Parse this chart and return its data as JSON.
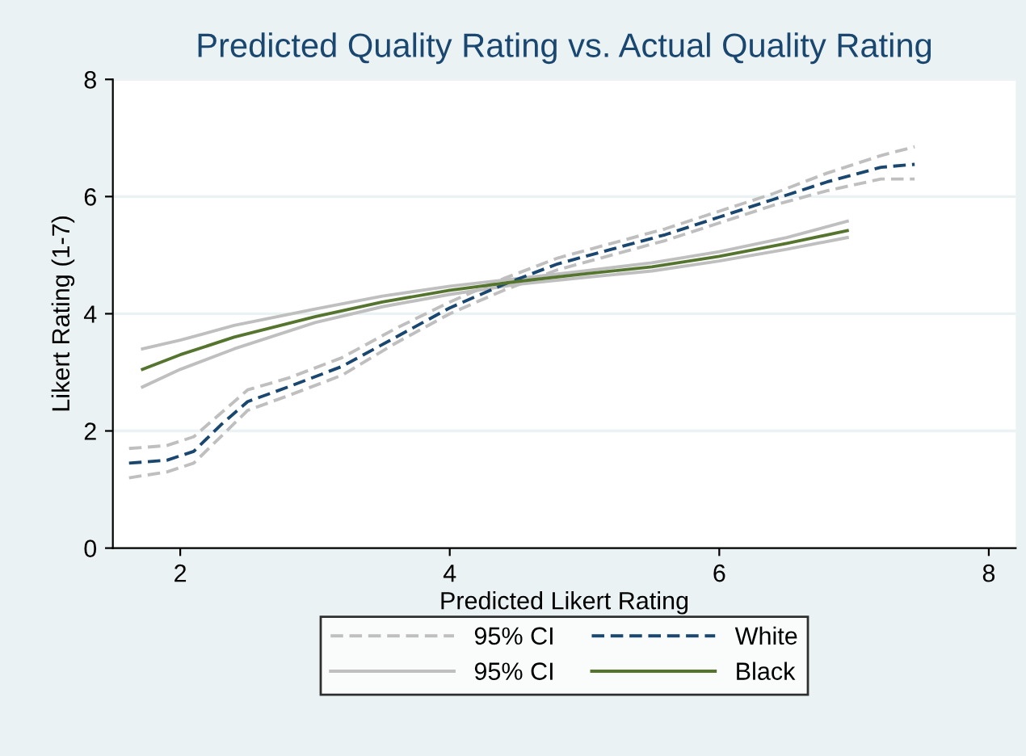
{
  "chart_data": {
    "type": "line",
    "title": "Predicted Quality Rating vs. Actual Quality Rating",
    "xlabel": "Predicted Likert Rating",
    "ylabel": "Likert Rating (1-7)",
    "xlim": [
      1.5,
      8.2
    ],
    "xticks": [
      2,
      4,
      6,
      8
    ],
    "ylim": [
      0,
      8
    ],
    "yticks": [
      0,
      2,
      4,
      6,
      8
    ],
    "grid": "y",
    "legend": "bottom",
    "marker": "none",
    "series": [
      {
        "name": "95% CI",
        "color": "#bfbfbf",
        "line_style": "dashed",
        "x": [
          1.62,
          1.9,
          2.1,
          2.3,
          2.5,
          2.8,
          3.2,
          3.6,
          4.0,
          4.4,
          4.8,
          5.2,
          5.6,
          6.0,
          6.4,
          6.8,
          7.2,
          7.45
        ],
        "values": [
          1.7,
          1.75,
          1.9,
          2.3,
          2.7,
          2.9,
          3.25,
          3.75,
          4.2,
          4.6,
          4.95,
          5.2,
          5.45,
          5.75,
          6.05,
          6.4,
          6.7,
          6.85
        ]
      },
      {
        "color": "#bfbfbf",
        "line_style": "dashed",
        "x": [
          1.62,
          1.9,
          2.1,
          2.3,
          2.5,
          2.8,
          3.2,
          3.6,
          4.0,
          4.4,
          4.8,
          5.2,
          5.6,
          6.0,
          6.4,
          6.8,
          7.2,
          7.45
        ],
        "values": [
          1.2,
          1.3,
          1.45,
          1.9,
          2.35,
          2.6,
          2.95,
          3.5,
          4.0,
          4.4,
          4.75,
          5.0,
          5.25,
          5.55,
          5.85,
          6.1,
          6.3,
          6.3
        ]
      },
      {
        "name": "95% CI",
        "color": "#bfbfbf",
        "line_style": "solid",
        "x": [
          1.72,
          2.0,
          2.4,
          3.0,
          3.5,
          4.0,
          4.5,
          5.0,
          5.5,
          6.0,
          6.5,
          6.95
        ],
        "values": [
          3.4,
          3.55,
          3.8,
          4.08,
          4.3,
          4.47,
          4.6,
          4.73,
          4.87,
          5.06,
          5.3,
          5.58
        ]
      },
      {
        "color": "#bfbfbf",
        "line_style": "solid",
        "x": [
          1.72,
          2.0,
          2.4,
          3.0,
          3.5,
          4.0,
          4.5,
          5.0,
          5.5,
          6.0,
          6.5,
          6.95
        ],
        "values": [
          2.75,
          3.05,
          3.4,
          3.85,
          4.12,
          4.33,
          4.5,
          4.62,
          4.73,
          4.9,
          5.1,
          5.3
        ]
      },
      {
        "name": "White",
        "color": "#1a476f",
        "line_style": "dashed",
        "x": [
          1.62,
          1.9,
          2.1,
          2.3,
          2.5,
          2.8,
          3.2,
          3.6,
          4.0,
          4.4,
          4.8,
          5.2,
          5.6,
          6.0,
          6.4,
          6.8,
          7.2,
          7.45
        ],
        "values": [
          1.45,
          1.5,
          1.65,
          2.1,
          2.5,
          2.75,
          3.1,
          3.6,
          4.1,
          4.5,
          4.85,
          5.1,
          5.35,
          5.65,
          5.95,
          6.25,
          6.5,
          6.55
        ]
      },
      {
        "name": "Black",
        "color": "#55752f",
        "line_style": "solid",
        "x": [
          1.72,
          2.0,
          2.4,
          3.0,
          3.5,
          4.0,
          4.5,
          5.0,
          5.5,
          6.0,
          6.5,
          6.95
        ],
        "values": [
          3.05,
          3.3,
          3.6,
          3.95,
          4.2,
          4.4,
          4.55,
          4.68,
          4.8,
          4.98,
          5.2,
          5.42
        ]
      }
    ]
  }
}
